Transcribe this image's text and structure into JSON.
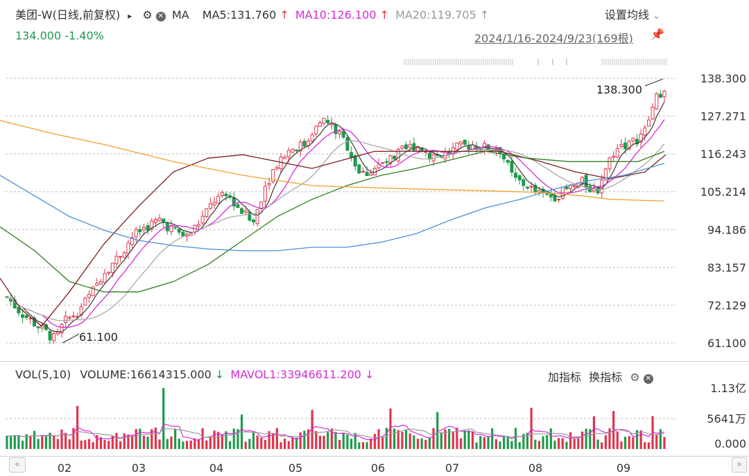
{
  "header": {
    "stock_name": "美团-W",
    "period": "(日线,前复权)",
    "expand_glyph": "▸",
    "indicator_name": "MA",
    "ma5": "MA5:131.760",
    "ma10": "MA10:126.100",
    "ma20": "MA20:119.705",
    "arrow_up": "↑",
    "settings_label": "设置均线",
    "chevron": "⌄"
  },
  "subheader": {
    "price_change": "134.000 -1.40%",
    "date_range": "2024/1/16-2024/9/23(169根)"
  },
  "volume_header": {
    "vol_label": "VOL(5,10)",
    "volume": "VOLUME:16614315.000",
    "mavol1": "MAVOL1:33946611.200",
    "arrow_down": "↓",
    "add_indicator": "加指标",
    "switch_indicator": "换指标"
  },
  "colors": {
    "up": "#e0334a",
    "down": "#1f9a4c",
    "ma5": "#444444",
    "ma10": "#d62ad6",
    "ma20": "#a8a8a8",
    "ma30": "#7a1f1f",
    "ma60": "#2e7d1e",
    "ma120": "#4a8fd6",
    "ma250": "#f0a030"
  },
  "chart_data": {
    "type": "candlestick",
    "ylim": [
      61.1,
      138.3
    ],
    "price_ticks": [
      "138.300",
      "127.271",
      "116.243",
      "105.214",
      "94.186",
      "83.157",
      "72.129",
      "61.100"
    ],
    "x_ticks": [
      "02",
      "03",
      "04",
      "05",
      "06",
      "07",
      "08",
      "09"
    ],
    "annotations": {
      "high": "138.300",
      "low": "61.100"
    },
    "volume_ticks": [
      "1.13亿",
      "5641万",
      "0.000"
    ],
    "volume_ylim": [
      0,
      113000000
    ],
    "moving_averages": {
      "ma30": [
        [
          0,
          80
        ],
        [
          30,
          71
        ],
        [
          60,
          66
        ],
        [
          100,
          76
        ],
        [
          150,
          90
        ],
        [
          200,
          101
        ],
        [
          250,
          111
        ],
        [
          300,
          115
        ],
        [
          350,
          116
        ],
        [
          450,
          112
        ],
        [
          540,
          117
        ],
        [
          600,
          117
        ],
        [
          680,
          117
        ],
        [
          720,
          117
        ],
        [
          780,
          114
        ],
        [
          830,
          111
        ],
        [
          880,
          109
        ],
        [
          930,
          111
        ],
        [
          960,
          116
        ]
      ],
      "ma60": [
        [
          0,
          95
        ],
        [
          50,
          88
        ],
        [
          100,
          79
        ],
        [
          150,
          76
        ],
        [
          200,
          76
        ],
        [
          250,
          79
        ],
        [
          300,
          84
        ],
        [
          350,
          91
        ],
        [
          400,
          98
        ],
        [
          450,
          103
        ],
        [
          500,
          107
        ],
        [
          550,
          110
        ],
        [
          600,
          112
        ],
        [
          700,
          117
        ],
        [
          760,
          115
        ],
        [
          820,
          114
        ],
        [
          880,
          114
        ],
        [
          920,
          114
        ],
        [
          958,
          117
        ]
      ],
      "ma120": [
        [
          0,
          110
        ],
        [
          50,
          104
        ],
        [
          100,
          98
        ],
        [
          150,
          94
        ],
        [
          200,
          91
        ],
        [
          250,
          89.5
        ],
        [
          300,
          88.5
        ],
        [
          350,
          88
        ],
        [
          400,
          88
        ],
        [
          450,
          89
        ],
        [
          500,
          89
        ],
        [
          550,
          90.5
        ],
        [
          600,
          93
        ],
        [
          650,
          97
        ],
        [
          700,
          100.5
        ],
        [
          750,
          103
        ],
        [
          800,
          106
        ],
        [
          850,
          108.5
        ],
        [
          900,
          110
        ],
        [
          958,
          113.5
        ]
      ],
      "ma250": [
        [
          0,
          126
        ],
        [
          80,
          122
        ],
        [
          150,
          119
        ],
        [
          250,
          114
        ],
        [
          350,
          110
        ],
        [
          450,
          107
        ],
        [
          520,
          106.5
        ],
        [
          600,
          106
        ],
        [
          700,
          105.5
        ],
        [
          780,
          105
        ],
        [
          840,
          104
        ],
        [
          880,
          103
        ],
        [
          958,
          102.5
        ]
      ]
    }
  }
}
